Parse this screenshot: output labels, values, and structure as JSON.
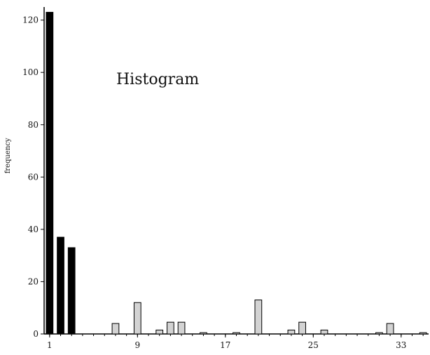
{
  "chart_data": {
    "type": "bar",
    "title": "Histogram",
    "xlabel": "",
    "ylabel": "frequency",
    "ylim": [
      0,
      125
    ],
    "xlim": [
      0.5,
      35.5
    ],
    "yticks": [
      0,
      20,
      40,
      60,
      80,
      100,
      120
    ],
    "xticks": [
      1,
      9,
      17,
      25,
      33
    ],
    "grid": false,
    "colors": {
      "highlight": "#000000",
      "normal": "#d3d3d3",
      "outline": "#000000"
    },
    "series": [
      {
        "x": [
          1,
          2,
          3,
          7,
          9,
          11,
          12,
          13,
          15,
          18,
          20,
          23,
          24,
          26,
          31,
          32,
          35
        ],
        "values": [
          123,
          37,
          33,
          4,
          12,
          1.5,
          4.5,
          4.5,
          0.5,
          0.5,
          13,
          1.5,
          4.5,
          1.5,
          0.5,
          4,
          0.5
        ],
        "highlighted": [
          true,
          true,
          true,
          false,
          false,
          false,
          false,
          false,
          false,
          false,
          false,
          false,
          false,
          false,
          false,
          false,
          false
        ]
      }
    ]
  }
}
